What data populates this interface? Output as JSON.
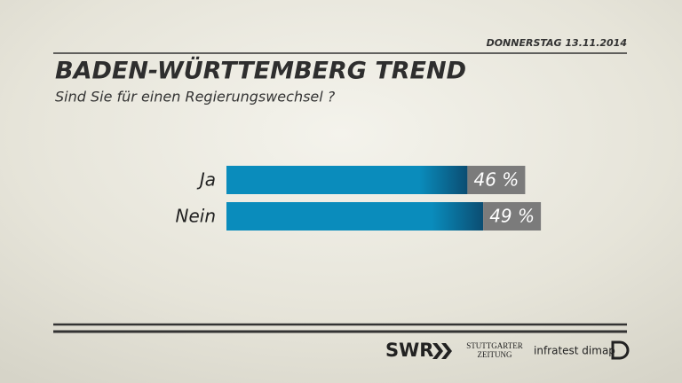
{
  "chart_data": {
    "type": "bar",
    "orientation": "horizontal",
    "date": "DONNERSTAG 13.11.2014",
    "title": "BADEN-WÜRTTEMBERG TREND",
    "subtitle": "Sind Sie für einen Regierungswechsel ?",
    "categories": [
      "Ja",
      "Nein"
    ],
    "values": [
      46,
      49
    ],
    "value_labels": [
      "46 %",
      "49 %"
    ],
    "color": "#0a8cbc",
    "label_color": "#7b7b7b",
    "footer_logos": [
      "SWR",
      "STUTTGARTER",
      "ZEITUNG",
      "infratest dimap"
    ]
  }
}
